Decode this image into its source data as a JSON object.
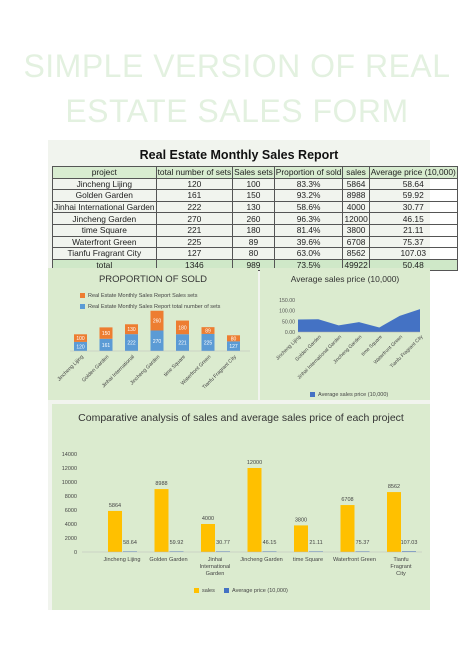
{
  "page": {
    "heading_line1": "SIMPLE VERSION OF REAL",
    "heading_line2": "ESTATE SALES FORM"
  },
  "report": {
    "title": "Real Estate Monthly Sales Report",
    "columns": [
      "project",
      "total number of sets",
      "Sales sets",
      "Proportion of sold",
      "sales",
      "Average price (10,000)"
    ],
    "rows": [
      [
        "Jincheng Lijing",
        "120",
        "100",
        "83.3%",
        "5864",
        "58.64"
      ],
      [
        "Golden Garden",
        "161",
        "150",
        "93.2%",
        "8988",
        "59.92"
      ],
      [
        "Jinhai International Garden",
        "222",
        "130",
        "58.6%",
        "4000",
        "30.77"
      ],
      [
        "Jincheng Garden",
        "270",
        "260",
        "96.3%",
        "12000",
        "46.15"
      ],
      [
        "time Square",
        "221",
        "180",
        "81.4%",
        "3800",
        "21.11"
      ],
      [
        "Waterfront Green",
        "225",
        "89",
        "39.6%",
        "6708",
        "75.37"
      ],
      [
        "Tianfu Fragrant City",
        "127",
        "80",
        "63.0%",
        "8562",
        "107.03"
      ]
    ],
    "total": [
      "total",
      "1346",
      "989",
      "73.5%",
      "49922",
      "50.48"
    ]
  },
  "chart_data": [
    {
      "type": "bar",
      "stacked": true,
      "title": "PROPORTION OF SOLD",
      "categories": [
        "Jincheng Lijing",
        "Golden Garden",
        "Jinhai International",
        "Jincheng Garden",
        "time Square",
        "Waterfront Green",
        "Tianfu Fragrant City"
      ],
      "series": [
        {
          "name": "Real Estate Monthly Sales Report total number of sets",
          "values": [
            120,
            161,
            222,
            270,
            221,
            225,
            127
          ]
        },
        {
          "name": "Real Estate Monthly Sales Report Sales sets",
          "values": [
            100,
            150,
            130,
            260,
            180,
            89,
            80
          ]
        }
      ],
      "legend": "top-left",
      "colors": [
        "#5b9bd5",
        "#ed7d31"
      ]
    },
    {
      "type": "area",
      "title": "Average sales price (10,000)",
      "categories": [
        "Jincheng Lijing",
        "Golden Garden",
        "Jinhai International Garden",
        "Jincheng Garden",
        "time Square",
        "Waterfront Green",
        "Tianfu Fragrant City"
      ],
      "series": [
        {
          "name": "Average sales price (10,000)",
          "values": [
            58.64,
            59.92,
            30.77,
            46.15,
            21.11,
            75.37,
            107.03
          ]
        }
      ],
      "yticks": [
        "150.00",
        "100.00",
        "50.00",
        "0.00"
      ],
      "ylim": [
        0,
        150
      ],
      "legend": "bottom",
      "colors": [
        "#4472c4"
      ]
    },
    {
      "type": "bar",
      "title": "Comparative analysis of sales and average sales price of each project",
      "categories": [
        "Jincheng Lijing",
        "Golden Garden",
        "Jinhai International Garden",
        "Jincheng Garden",
        "time Square",
        "Waterfront Green",
        "Tianfu Fragrant City"
      ],
      "series": [
        {
          "name": "sales",
          "values": [
            5864,
            8988,
            4000,
            12000,
            3800,
            6708,
            8562
          ]
        },
        {
          "name": "Average price (10,000)",
          "values": [
            58.64,
            59.92,
            30.77,
            46.15,
            21.11,
            75.37,
            107.03
          ]
        }
      ],
      "yticks": [
        "14000",
        "12000",
        "10000",
        "8000",
        "6000",
        "4000",
        "2000",
        "0"
      ],
      "ylim": [
        0,
        14000
      ],
      "legend": "bottom",
      "colors": [
        "#ffc000",
        "#4472c4"
      ]
    }
  ]
}
